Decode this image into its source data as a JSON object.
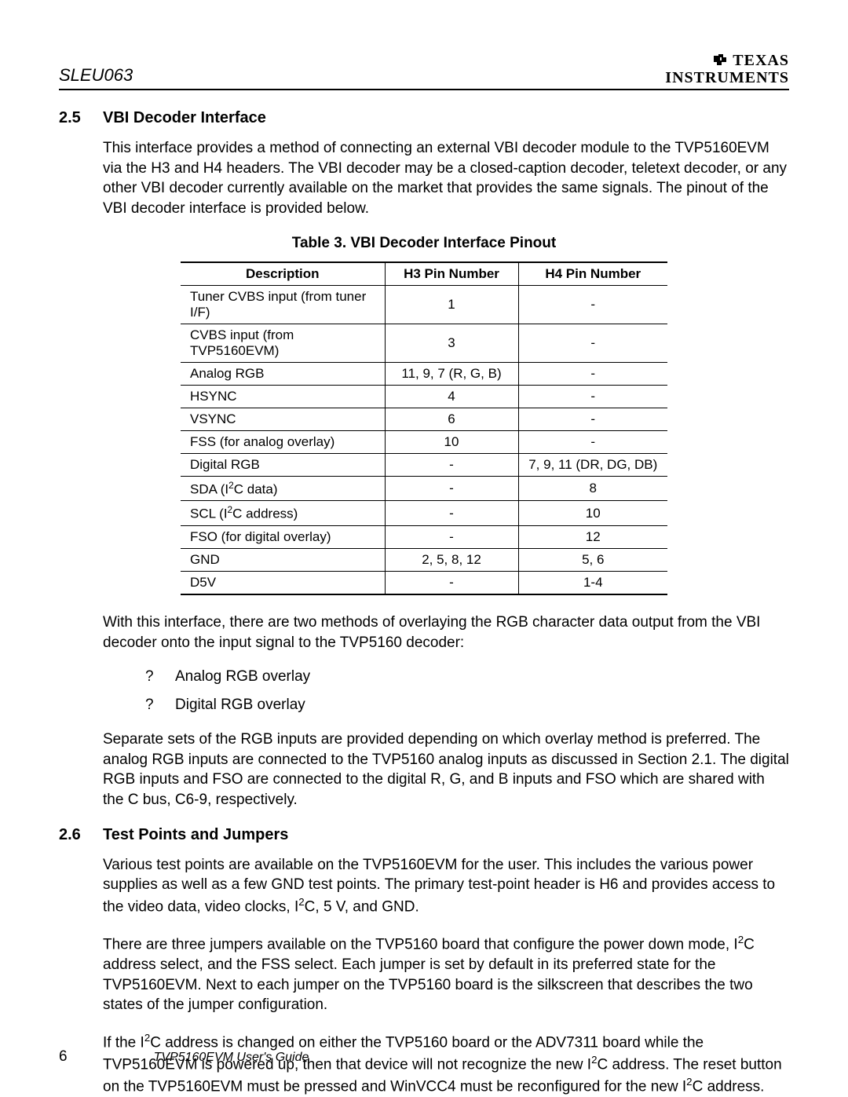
{
  "docId": "SLEU063",
  "logo": {
    "texas": "TEXAS",
    "instruments": "INSTRUMENTS"
  },
  "section25": {
    "num": "2.5",
    "title": "VBI Decoder Interface",
    "para1": "This interface provides a method of connecting an external VBI decoder module to the TVP5160EVM via the H3 and H4 headers.  The VBI decoder may be a closed-caption decoder, teletext decoder, or any other VBI decoder currently available on the market that provides the same signals.  The pinout of the VBI decoder interface is provided below.",
    "tableCaption": "Table 3.     VBI Decoder Interface Pinout",
    "columns": [
      "Description",
      "H3 Pin Number",
      "H4 Pin Number"
    ],
    "rows": [
      [
        "Tuner CVBS input (from tuner I/F)",
        "1",
        "-"
      ],
      [
        "CVBS input (from TVP5160EVM)",
        "3",
        "-"
      ],
      [
        "Analog RGB",
        "11, 9, 7 (R, G, B)",
        "-"
      ],
      [
        "HSYNC",
        "4",
        "-"
      ],
      [
        "VSYNC",
        "6",
        "-"
      ],
      [
        "FSS (for analog overlay)",
        "10",
        "-"
      ],
      [
        "Digital RGB",
        "-",
        "7, 9, 11 (DR, DG, DB)"
      ],
      [
        "SDA (I²C data)",
        "-",
        "8"
      ],
      [
        "SCL (I²C address)",
        "-",
        "10"
      ],
      [
        "FSO (for digital overlay)",
        "-",
        "12"
      ],
      [
        "GND",
        "2, 5, 8, 12",
        "5, 6"
      ],
      [
        "D5V",
        "-",
        "1-4"
      ]
    ],
    "para2": "With this interface, there are two methods of overlaying the RGB character data output from the VBI decoder onto the input signal to the TVP5160 decoder:",
    "bullets": [
      "Analog RGB overlay",
      "Digital RGB overlay"
    ],
    "bulletMarker": "?",
    "para3": "Separate sets of the RGB inputs are provided depending on which overlay method is preferred.  The analog RGB inputs are connected to the TVP5160 analog inputs as discussed in Section 2.1.  The digital RGB inputs and FSO are connected to the digital R, G, and B inputs and FSO which are shared with the C bus, C6-9, respectively."
  },
  "section26": {
    "num": "2.6",
    "title": "Test Points and Jumpers",
    "para1": "Various test points are available on the TVP5160EVM for the user.  This includes the various power supplies as well as a few GND test points.  The primary test-point header is H6 and provides access to the video data, video clocks, I²C, 5 V, and GND.",
    "para2": "There are three jumpers available on the TVP5160 board that configure the power down mode, I²C address select, and the FSS select.  Each jumper is set by default in its preferred state for the TVP5160EVM.  Next to each jumper on the TVP5160 board is the silkscreen that describes the two states of the jumper configuration.",
    "para3": "If the I²C address is changed on either the TVP5160 board or the ADV7311 board while the TVP5160EVM is powered up, then that device will not recognize the new I²C address.  The reset button on the TVP5160EVM must be pressed and WinVCC4 must be reconfigured for the new I²C address."
  },
  "footer": {
    "pageNum": "6",
    "title": "TVP5160EVM User's Guide"
  }
}
